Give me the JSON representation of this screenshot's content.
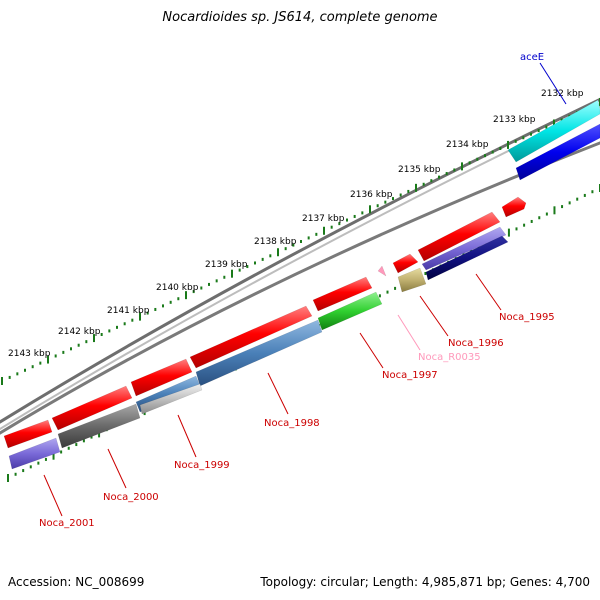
{
  "title": "Nocardioides sp. JS614, complete genome",
  "footer": {
    "accession": "Accession: NC_008699",
    "stats": "Topology: circular; Length: 4,985,871 bp; Genes: 4,700"
  },
  "colors": {
    "backbone": "#808080",
    "tick": "#1a7a1a",
    "label_red": "#cc0000",
    "label_pink": "#ff99bb",
    "label_blue": "#0000cc"
  },
  "kbp_ticks": [
    "2132 kbp",
    "2133 kbp",
    "2134 kbp",
    "2135 kbp",
    "2136 kbp",
    "2137 kbp",
    "2138 kbp",
    "2139 kbp",
    "2140 kbp",
    "2141 kbp",
    "2142 kbp",
    "2143 kbp"
  ],
  "gene_labels": [
    {
      "text": "aceE",
      "color": "blue"
    },
    {
      "text": "Noca_1995",
      "color": "red"
    },
    {
      "text": "Noca_1996",
      "color": "red"
    },
    {
      "text": "Noca_R0035",
      "color": "pink"
    },
    {
      "text": "Noca_1997",
      "color": "red"
    },
    {
      "text": "Noca_1998",
      "color": "red"
    },
    {
      "text": "Noca_1999",
      "color": "red"
    },
    {
      "text": "Noca_2000",
      "color": "red"
    },
    {
      "text": "Noca_2001",
      "color": "red"
    }
  ]
}
